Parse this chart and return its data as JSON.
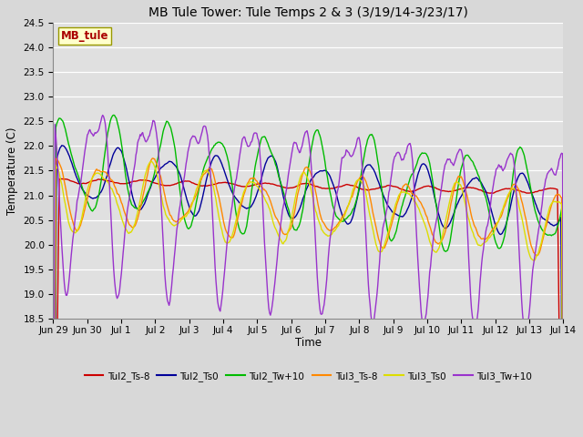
{
  "title": "MB Tule Tower: Tule Temps 2 & 3 (3/19/14-3/23/17)",
  "xlabel": "Time",
  "ylabel": "Temperature (C)",
  "ylim": [
    18.5,
    24.5
  ],
  "yticks": [
    18.5,
    19.0,
    19.5,
    20.0,
    20.5,
    21.0,
    21.5,
    22.0,
    22.5,
    23.0,
    23.5,
    24.0,
    24.5
  ],
  "background_color": "#d8d8d8",
  "plot_bg_color": "#e0e0e0",
  "grid_color": "#ffffff",
  "series_colors": {
    "Tul2_Ts-8": "#cc0000",
    "Tul2_Ts0": "#000099",
    "Tul2_Tw+10": "#00bb00",
    "Tul3_Ts-8": "#ff8800",
    "Tul3_Ts0": "#dddd00",
    "Tul3_Tw+10": "#9933cc"
  },
  "legend_label": "MB_tule",
  "legend_label_color": "#aa0000",
  "legend_box_facecolor": "#ffffcc",
  "legend_box_edgecolor": "#999900",
  "x_tick_labels": [
    "Jun 29",
    "Jun 30",
    "Jul 1",
    "Jul 2",
    "Jul 3",
    "Jul 4",
    "Jul 5",
    "Jul 6",
    "Jul 7",
    "Jul 8",
    "Jul 9",
    "Jul 10",
    "Jul 11",
    "Jul 12",
    "Jul 13",
    "Jul 14"
  ],
  "figsize": [
    6.4,
    4.8
  ],
  "dpi": 100
}
